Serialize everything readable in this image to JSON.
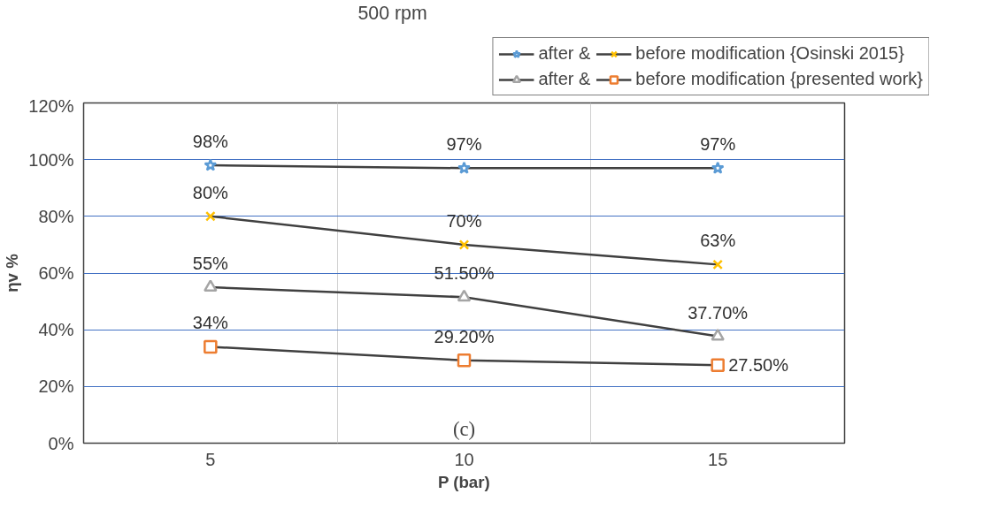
{
  "chart_data": {
    "type": "line",
    "title": "500 rpm",
    "xlabel": "P (bar)",
    "ylabel": "ηv %",
    "categories": [
      "5",
      "10",
      "15"
    ],
    "ylim": [
      0,
      120
    ],
    "yticks": [
      {
        "value": 0,
        "label": "0%"
      },
      {
        "value": 20,
        "label": "20%"
      },
      {
        "value": 40,
        "label": "40%"
      },
      {
        "value": 60,
        "label": "60%"
      },
      {
        "value": 80,
        "label": "80%"
      },
      {
        "value": 100,
        "label": "100%"
      },
      {
        "value": 120,
        "label": "120%"
      }
    ],
    "grid": true,
    "legend": "top right",
    "series": [
      {
        "name": "after &",
        "color": "#5b9bd5",
        "marker": "star",
        "values": [
          98,
          97,
          97
        ],
        "value_labels": [
          "98%",
          "97%",
          "97%"
        ]
      },
      {
        "name": "before modification {Osinski 2015}",
        "color": "#ffc000",
        "marker": "cross",
        "values": [
          80,
          70,
          63
        ],
        "value_labels": [
          "80%",
          "70%",
          "63%"
        ]
      },
      {
        "name": "after &",
        "color": "#a5a5a5",
        "marker": "triangle",
        "values": [
          55,
          51.5,
          37.7
        ],
        "value_labels": [
          "55%",
          "51.50%",
          "37.70%"
        ]
      },
      {
        "name": "before modification {presented work}",
        "color": "#ed7d31",
        "marker": "square",
        "values": [
          34,
          29.2,
          27.5
        ],
        "value_labels": [
          "34%",
          "29.20%",
          "27.50%"
        ]
      }
    ],
    "annotations": [
      "(c)"
    ]
  }
}
